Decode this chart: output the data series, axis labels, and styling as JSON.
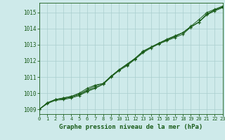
{
  "title": "Graphe pression niveau de la mer (hPa)",
  "x_labels": [
    0,
    1,
    2,
    3,
    4,
    5,
    6,
    7,
    8,
    9,
    10,
    11,
    12,
    13,
    14,
    15,
    16,
    17,
    18,
    19,
    20,
    21,
    22,
    23
  ],
  "ylim": [
    1008.7,
    1015.6
  ],
  "xlim": [
    0,
    23
  ],
  "yticks": [
    1009,
    1010,
    1011,
    1012,
    1013,
    1014,
    1015
  ],
  "bg_color": "#ceeaea",
  "grid_color": "#aacece",
  "line_color": "#1a5c1a",
  "series": [
    [
      1009.0,
      1009.4,
      1009.6,
      1009.65,
      1009.75,
      1009.9,
      1010.15,
      1010.35,
      1010.55,
      1011.05,
      1011.45,
      1011.75,
      1012.15,
      1012.55,
      1012.85,
      1013.1,
      1013.3,
      1013.5,
      1013.75,
      1014.15,
      1014.55,
      1015.0,
      1015.2,
      1015.4
    ],
    [
      1009.0,
      1009.35,
      1009.55,
      1009.6,
      1009.7,
      1009.85,
      1010.1,
      1010.3,
      1010.55,
      1011.0,
      1011.4,
      1011.7,
      1012.1,
      1012.5,
      1012.8,
      1013.05,
      1013.25,
      1013.45,
      1013.65,
      1014.1,
      1014.4,
      1014.85,
      1015.1,
      1015.3
    ],
    [
      1009.0,
      1009.4,
      1009.6,
      1009.7,
      1009.8,
      1010.0,
      1010.3,
      1010.5,
      1010.6,
      1011.05,
      1011.45,
      1011.8,
      1012.15,
      1012.6,
      1012.85,
      1013.1,
      1013.3,
      1013.55,
      1013.75,
      1014.1,
      1014.4,
      1014.9,
      1015.15,
      1015.35
    ],
    [
      1009.0,
      1009.4,
      1009.6,
      1009.7,
      1009.8,
      1009.95,
      1010.2,
      1010.45,
      1010.6,
      1011.05,
      1011.45,
      1011.8,
      1012.15,
      1012.6,
      1012.85,
      1013.1,
      1013.35,
      1013.55,
      1013.75,
      1014.1,
      1014.4,
      1014.9,
      1015.15,
      1015.35
    ]
  ]
}
